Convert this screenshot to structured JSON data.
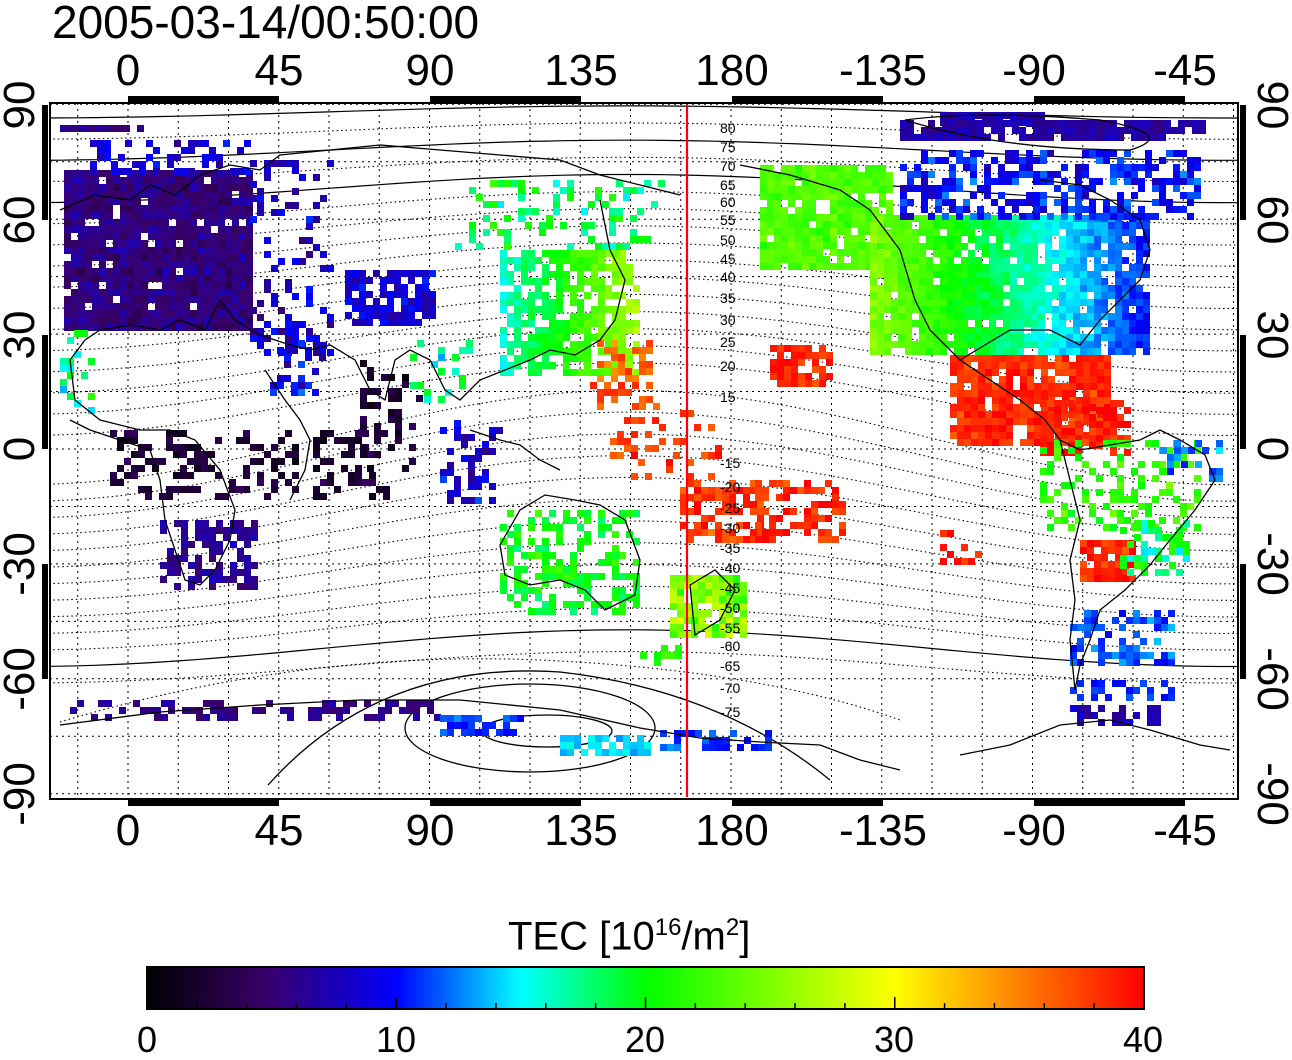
{
  "timestamp": "2005-03-14/00:50:00",
  "map": {
    "top_lon_ticks": [
      "0",
      "45",
      "90",
      "135",
      "180",
      "-135",
      "-90",
      "-45"
    ],
    "bottom_lon_ticks": [
      "0",
      "45",
      "90",
      "135",
      "180",
      "-135",
      "-90",
      "-45"
    ],
    "left_lat_ticks": [
      "90",
      "60",
      "30",
      "0",
      "-30",
      "-60",
      "-90"
    ],
    "right_lat_ticks": [
      "90",
      "60",
      "30",
      "0",
      "-30",
      "-60",
      "-90"
    ],
    "contour_labels_north": [
      "80",
      "75",
      "70",
      "65",
      "60",
      "55",
      "50",
      "45",
      "40",
      "35",
      "30",
      "25",
      "20",
      "15"
    ],
    "contour_labels_south": [
      "-15",
      "-20",
      "-25",
      "-30",
      "-35",
      "-40",
      "-45",
      "-50",
      "-55",
      "-60",
      "-65",
      "-70",
      "-75"
    ],
    "meridian_line_color": "#ff0000"
  },
  "colorbar": {
    "title_main": "TEC  [10",
    "title_sup1": "16",
    "title_mid": "/m",
    "title_sup2": "2",
    "title_end": "]",
    "tick_labels": [
      "0",
      "10",
      "20",
      "30",
      "40"
    ],
    "min": 0,
    "max": 40,
    "colors": [
      "#000000",
      "#3a006a",
      "#0000ff",
      "#00ffff",
      "#00ff00",
      "#ffff00",
      "#ff0000"
    ]
  }
}
